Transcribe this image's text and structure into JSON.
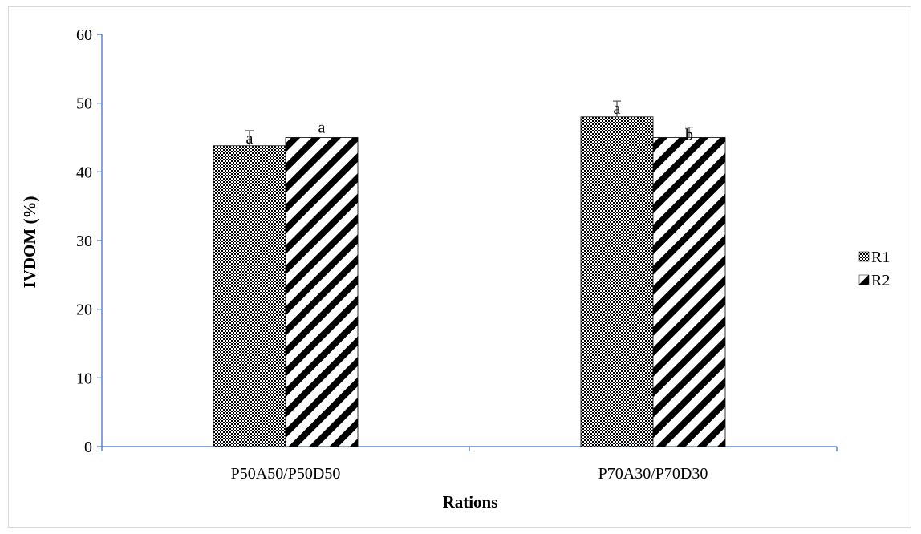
{
  "chart_data": {
    "type": "bar",
    "title": "",
    "xlabel": "Rations",
    "ylabel": "IVDOM (%)",
    "ylim": [
      0,
      60
    ],
    "yticks": [
      0,
      10,
      20,
      30,
      40,
      50,
      60
    ],
    "categories": [
      "P50A50/P50D50",
      "P70A30/P70D30"
    ],
    "series": [
      {
        "name": "R1",
        "values": [
          43.8,
          48.0
        ],
        "errors": [
          2.2,
          2.3
        ],
        "letters": [
          "a",
          "a"
        ],
        "pattern": "checker"
      },
      {
        "name": "R2",
        "values": [
          45.0,
          45.0
        ],
        "errors": [
          0,
          1.5
        ],
        "letters": [
          "a",
          "b"
        ],
        "pattern": "diagonal"
      }
    ],
    "legend_position": "right",
    "grid": false,
    "axis_color": "#4472c4",
    "bar_color": "#000000"
  }
}
